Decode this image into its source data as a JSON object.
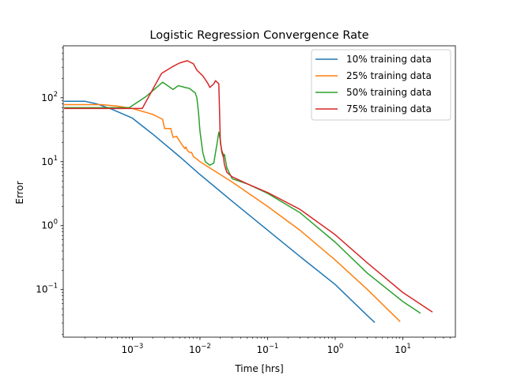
{
  "chart_data": {
    "type": "line",
    "title": "Logistic Regression Convergence Rate",
    "xlabel": "Time [hrs]",
    "ylabel": "Error",
    "xscale": "log",
    "yscale": "log",
    "xlim": [
      9.5e-05,
      60
    ],
    "ylim": [
      0.018,
      650
    ],
    "xticks": [
      {
        "value": 0.001,
        "base": "10",
        "exp": "−3"
      },
      {
        "value": 0.01,
        "base": "10",
        "exp": "−2"
      },
      {
        "value": 0.1,
        "base": "10",
        "exp": "−1"
      },
      {
        "value": 1,
        "base": "10",
        "exp": "0"
      },
      {
        "value": 10,
        "base": "10",
        "exp": "1"
      }
    ],
    "yticks": [
      {
        "value": 0.1,
        "base": "10",
        "exp": "−1"
      },
      {
        "value": 1,
        "base": "10",
        "exp": "0"
      },
      {
        "value": 10,
        "base": "10",
        "exp": "1"
      },
      {
        "value": 100,
        "base": "10",
        "exp": "2"
      }
    ],
    "grid": false,
    "legend_position": "top-right",
    "series": [
      {
        "name": "10% training data",
        "color": "#1f77b4",
        "points": [
          [
            0.0001,
            88
          ],
          [
            0.0002,
            88
          ],
          [
            0.0003,
            80
          ],
          [
            0.0005,
            66
          ],
          [
            0.001,
            48
          ],
          [
            0.002,
            27
          ],
          [
            0.005,
            12
          ],
          [
            0.01,
            6.3
          ],
          [
            0.03,
            2.4
          ],
          [
            0.1,
            0.85
          ],
          [
            0.3,
            0.33
          ],
          [
            1,
            0.12
          ],
          [
            3,
            0.039
          ],
          [
            3.8,
            0.031
          ]
        ]
      },
      {
        "name": "25% training data",
        "color": "#ff7f0e",
        "points": [
          [
            0.0001,
            78
          ],
          [
            0.00035,
            78
          ],
          [
            0.0006,
            74
          ],
          [
            0.001,
            68
          ],
          [
            0.002,
            55
          ],
          [
            0.0028,
            46
          ],
          [
            0.003,
            33
          ],
          [
            0.0037,
            33
          ],
          [
            0.004,
            24
          ],
          [
            0.0045,
            25
          ],
          [
            0.005,
            21
          ],
          [
            0.0055,
            18
          ],
          [
            0.006,
            16
          ],
          [
            0.0062,
            17
          ],
          [
            0.0065,
            15
          ],
          [
            0.007,
            14
          ],
          [
            0.0075,
            14
          ],
          [
            0.008,
            12
          ],
          [
            0.009,
            11
          ],
          [
            0.01,
            10
          ],
          [
            0.02,
            6.3
          ],
          [
            0.03,
            4.8
          ],
          [
            0.1,
            2.0
          ],
          [
            0.3,
            0.85
          ],
          [
            1,
            0.29
          ],
          [
            3,
            0.1
          ],
          [
            9,
            0.032
          ]
        ]
      },
      {
        "name": "50% training data",
        "color": "#2ca02c",
        "points": [
          [
            0.0001,
            70
          ],
          [
            0.0009,
            70
          ],
          [
            0.0016,
            105
          ],
          [
            0.0028,
            175
          ],
          [
            0.004,
            135
          ],
          [
            0.0048,
            155
          ],
          [
            0.006,
            145
          ],
          [
            0.007,
            140
          ],
          [
            0.008,
            125
          ],
          [
            0.0085,
            120
          ],
          [
            0.009,
            100
          ],
          [
            0.0095,
            60
          ],
          [
            0.01,
            30
          ],
          [
            0.011,
            14
          ],
          [
            0.012,
            10
          ],
          [
            0.014,
            8.8
          ],
          [
            0.016,
            9.5
          ],
          [
            0.018,
            20
          ],
          [
            0.019,
            29
          ],
          [
            0.02,
            22
          ],
          [
            0.021,
            14
          ],
          [
            0.022,
            12
          ],
          [
            0.023,
            13
          ],
          [
            0.025,
            8
          ],
          [
            0.03,
            5.4
          ],
          [
            0.05,
            4.5
          ],
          [
            0.1,
            3.2
          ],
          [
            0.3,
            1.6
          ],
          [
            1,
            0.55
          ],
          [
            3,
            0.18
          ],
          [
            10,
            0.065
          ],
          [
            18,
            0.043
          ]
        ]
      },
      {
        "name": "75% training data",
        "color": "#d62728",
        "points": [
          [
            0.0001,
            68
          ],
          [
            0.0014,
            68
          ],
          [
            0.0027,
            240
          ],
          [
            0.004,
            310
          ],
          [
            0.005,
            350
          ],
          [
            0.0065,
            380
          ],
          [
            0.008,
            340
          ],
          [
            0.009,
            270
          ],
          [
            0.011,
            220
          ],
          [
            0.013,
            170
          ],
          [
            0.014,
            145
          ],
          [
            0.016,
            165
          ],
          [
            0.017,
            185
          ],
          [
            0.019,
            165
          ],
          [
            0.0195,
            60
          ],
          [
            0.02,
            20
          ],
          [
            0.021,
            15
          ],
          [
            0.022,
            13
          ],
          [
            0.023,
            9
          ],
          [
            0.025,
            6.8
          ],
          [
            0.03,
            5.8
          ],
          [
            0.05,
            4.5
          ],
          [
            0.1,
            3.3
          ],
          [
            0.3,
            1.8
          ],
          [
            1,
            0.72
          ],
          [
            3,
            0.26
          ],
          [
            10,
            0.09
          ],
          [
            27,
            0.045
          ]
        ]
      }
    ]
  }
}
